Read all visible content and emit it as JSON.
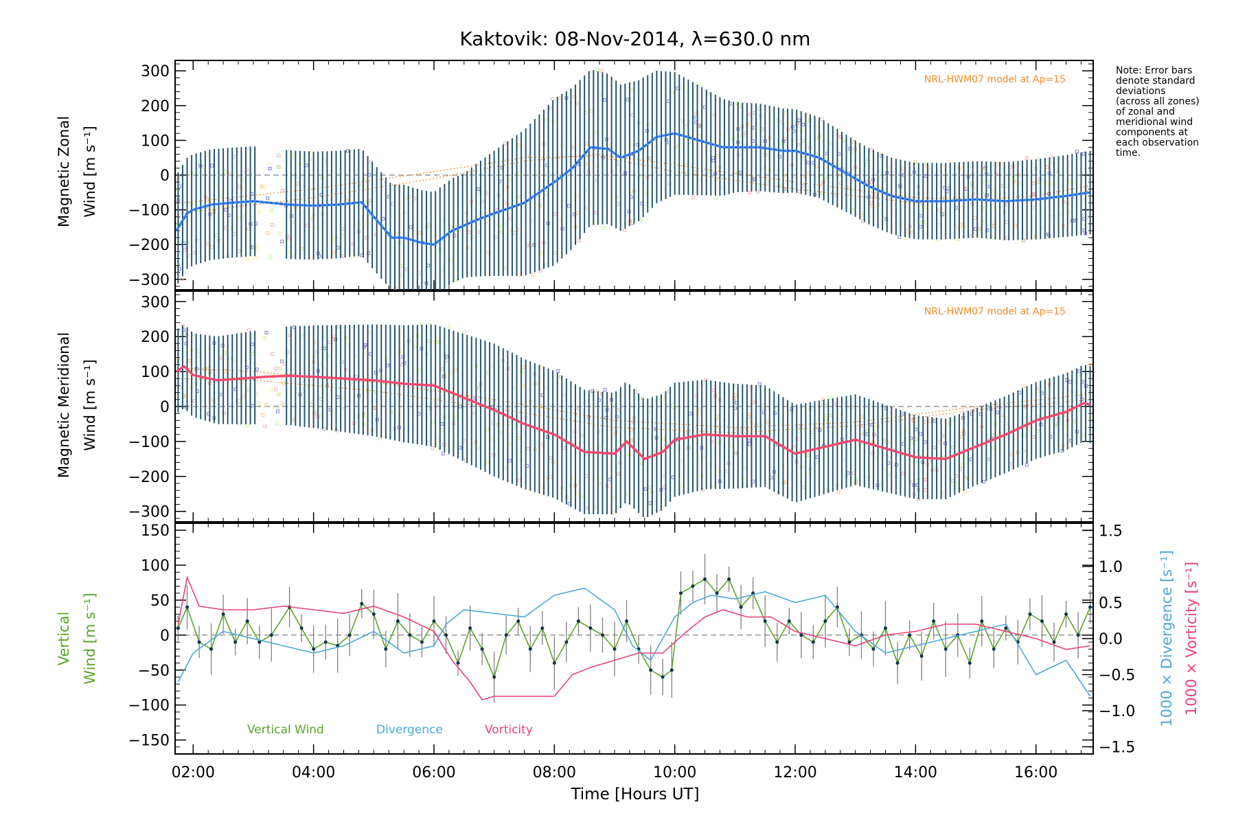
{
  "chart_data": {
    "title": "Kaktovik: 08-Nov-2014, λ=630.0 nm",
    "xlabel": "Time [Hours UT]",
    "x_ticks": [
      "02:00",
      "04:00",
      "06:00",
      "08:00",
      "10:00",
      "12:00",
      "14:00",
      "16:00"
    ],
    "x_tick_values": [
      2,
      4,
      6,
      8,
      10,
      12,
      14,
      16
    ],
    "xlim": [
      1.7,
      16.95
    ],
    "note_lines": [
      "Note: Error bars",
      "denote standard",
      "deviations",
      "(across all zones)",
      "of zonal and",
      "meridional wind",
      "components at",
      "each observation",
      "time."
    ],
    "colors": {
      "zonal": "#3f8fe0",
      "zonal_dark": "#1e3ef0",
      "meridional": "#f04a6e",
      "vertical": "#5aa52a",
      "divergence": "#4aa8d8",
      "vorticity": "#e8407a",
      "model": "#f08c28",
      "errorbar": "#23556e",
      "scatter_orange": "#f8c890",
      "scatter_green": "#c8f0a0",
      "scatter_yellow": "#f8e8a8",
      "scatter_blue": "#8080d0",
      "zero_line": "#808080"
    },
    "panels": [
      {
        "type": "line",
        "name": "zonal",
        "ylabel_line1": "Magnetic Zonal",
        "ylabel_line2": "Wind [m s⁻¹]",
        "ylim": [
          -330,
          330
        ],
        "yticks": [
          300,
          200,
          100,
          0,
          -100,
          -200,
          -300
        ],
        "model_label": "NRL-HWM07 model at Ap=15",
        "series": [
          {
            "x": [
              1.72,
              1.9,
              2.0,
              2.3,
              2.6,
              3.0,
              3.6,
              4.0,
              4.4,
              4.8,
              5.0,
              5.3,
              5.5,
              5.8,
              6.0,
              6.3,
              6.7,
              7.0,
              7.5,
              8.0,
              8.3,
              8.6,
              8.9,
              9.1,
              9.4,
              9.7,
              10.0,
              10.2,
              10.5,
              10.8,
              11.0,
              11.4,
              11.8,
              12.0,
              12.4,
              12.8,
              13.2,
              13.6,
              14.0,
              14.5,
              15.0,
              15.5,
              16.0,
              16.5,
              16.9
            ],
            "y": [
              -160,
              -110,
              -100,
              -85,
              -80,
              -75,
              -85,
              -88,
              -85,
              -78,
              -120,
              -180,
              -180,
              -195,
              -200,
              -160,
              -130,
              -110,
              -80,
              -20,
              20,
              80,
              75,
              50,
              70,
              110,
              120,
              110,
              95,
              80,
              80,
              80,
              70,
              70,
              50,
              10,
              -30,
              -60,
              -75,
              -75,
              -70,
              -75,
              -70,
              -60,
              -50
            ]
          }
        ],
        "model_curves": [
          {
            "x": [
              1.8,
              4.0,
              6.0,
              7.5,
              8.7,
              10.0,
              12.0,
              14.0,
              16.0,
              16.9
            ],
            "y": [
              -110,
              -65,
              -10,
              40,
              60,
              30,
              -20,
              -65,
              -75,
              -45
            ]
          },
          {
            "x": [
              1.8,
              4.0,
              6.0,
              7.5,
              8.7,
              10.0,
              12.0,
              14.0,
              16.0,
              16.9
            ],
            "y": [
              -80,
              -40,
              10,
              50,
              55,
              10,
              -40,
              -80,
              -60,
              -30
            ]
          }
        ],
        "error_sigma": [
          [
            2,
            160
          ],
          [
            6.5,
            150
          ],
          [
            8.0,
            240
          ],
          [
            9.5,
            200
          ],
          [
            11.0,
            130
          ],
          [
            13.0,
            110
          ],
          [
            15.0,
            110
          ],
          [
            16.9,
            120
          ]
        ]
      },
      {
        "type": "line",
        "name": "meridional",
        "ylabel_line1": "Magnetic Meridional",
        "ylabel_line2": "Wind [m s⁻¹]",
        "ylim": [
          -330,
          330
        ],
        "yticks": [
          300,
          200,
          100,
          0,
          -100,
          -200,
          -300
        ],
        "model_label": "NRL-HWM07 model at Ap=15",
        "series": [
          {
            "x": [
              1.72,
              1.85,
              2.0,
              2.4,
              2.8,
              3.2,
              3.6,
              4.0,
              4.5,
              5.0,
              5.5,
              6.0,
              6.5,
              7.0,
              7.5,
              8.0,
              8.5,
              9.0,
              9.2,
              9.5,
              9.8,
              10.0,
              10.5,
              11.0,
              11.5,
              12.0,
              12.5,
              13.0,
              13.5,
              14.0,
              14.5,
              15.0,
              15.5,
              16.0,
              16.5,
              16.8,
              16.9
            ],
            "y": [
              100,
              115,
              90,
              75,
              80,
              85,
              88,
              85,
              80,
              75,
              65,
              60,
              25,
              -10,
              -50,
              -80,
              -130,
              -135,
              -100,
              -150,
              -130,
              -95,
              -80,
              -85,
              -85,
              -135,
              -115,
              -95,
              -120,
              -145,
              -150,
              -115,
              -80,
              -40,
              -15,
              10,
              5
            ]
          }
        ],
        "model_curves": [
          {
            "x": [
              1.8,
              3.0,
              5.0,
              7.0,
              9.0,
              11.0,
              13.0,
              15.0,
              16.9
            ],
            "y": [
              110,
              100,
              70,
              20,
              -40,
              -60,
              -45,
              0,
              35
            ]
          },
          {
            "x": [
              1.8,
              3.0,
              5.0,
              7.0,
              9.0,
              11.0,
              13.0,
              15.0,
              16.9
            ],
            "y": [
              80,
              75,
              45,
              -5,
              -60,
              -75,
              -55,
              -10,
              20
            ]
          }
        ],
        "error_sigma": [
          [
            2,
            120
          ],
          [
            5.0,
            160
          ],
          [
            7.0,
            190
          ],
          [
            9.5,
            170
          ],
          [
            11.0,
            150
          ],
          [
            13.0,
            130
          ],
          [
            15.0,
            110
          ],
          [
            16.9,
            110
          ]
        ]
      },
      {
        "type": "line",
        "name": "vertical",
        "ylabel_line1": "Vertical",
        "ylabel_line2": "Wind [m s⁻¹]",
        "ylim": [
          -170,
          160
        ],
        "yticks": [
          150,
          100,
          50,
          0,
          -50,
          -100,
          -150
        ],
        "y2lim": [
          -1.6,
          1.6
        ],
        "y2ticks": [
          1.5,
          1.0,
          0.5,
          0.0,
          -0.5,
          -1.0,
          -1.5
        ],
        "y2label_div": "1000 × Divergence [s⁻¹]",
        "y2label_vor": "1000 × Vorticity [s⁻¹]",
        "legend": [
          "Vertical Wind",
          "Divergence",
          "Vorticity"
        ],
        "series": [
          {
            "name": "Vertical Wind",
            "x": [
              1.75,
              1.9,
              2.1,
              2.3,
              2.5,
              2.7,
              2.9,
              3.1,
              3.3,
              3.6,
              3.8,
              4.0,
              4.2,
              4.4,
              4.6,
              4.8,
              5.0,
              5.2,
              5.4,
              5.6,
              5.8,
              6.0,
              6.2,
              6.4,
              6.6,
              6.8,
              7.0,
              7.2,
              7.4,
              7.6,
              7.8,
              8.0,
              8.2,
              8.4,
              8.6,
              8.8,
              9.0,
              9.2,
              9.4,
              9.6,
              9.8,
              9.95,
              10.1,
              10.3,
              10.5,
              10.7,
              10.9,
              11.1,
              11.3,
              11.5,
              11.7,
              11.9,
              12.1,
              12.3,
              12.5,
              12.7,
              12.9,
              13.1,
              13.3,
              13.5,
              13.7,
              13.9,
              14.1,
              14.3,
              14.5,
              14.7,
              14.9,
              15.1,
              15.3,
              15.5,
              15.7,
              15.9,
              16.1,
              16.3,
              16.5,
              16.7,
              16.9
            ],
            "y": [
              10,
              40,
              -10,
              -20,
              30,
              -10,
              20,
              -10,
              0,
              40,
              10,
              -20,
              -10,
              -15,
              0,
              45,
              30,
              -20,
              20,
              0,
              -10,
              20,
              0,
              -40,
              10,
              -20,
              -60,
              0,
              20,
              -20,
              10,
              -40,
              -10,
              20,
              10,
              0,
              -20,
              20,
              -20,
              -50,
              -60,
              -50,
              60,
              70,
              80,
              60,
              80,
              40,
              60,
              20,
              -10,
              20,
              0,
              -10,
              20,
              40,
              -10,
              0,
              -20,
              10,
              -40,
              0,
              -30,
              20,
              -20,
              0,
              -40,
              20,
              -20,
              10,
              -10,
              30,
              20,
              -10,
              30,
              0,
              40
            ]
          },
          {
            "name": "Divergence",
            "x": [
              1.75,
              2.0,
              2.5,
              3.0,
              3.5,
              4.0,
              4.5,
              5.0,
              5.5,
              6.0,
              6.2,
              6.5,
              7.0,
              7.5,
              8.0,
              8.5,
              9.0,
              9.3,
              9.6,
              10.0,
              10.3,
              10.6,
              11.0,
              11.5,
              12.0,
              12.5,
              13.0,
              13.5,
              14.0,
              14.5,
              15.0,
              15.5,
              16.0,
              16.5,
              16.9
            ],
            "y": [
              -0.6,
              -0.2,
              0.1,
              0.0,
              -0.1,
              -0.2,
              -0.1,
              0.1,
              -0.2,
              -0.1,
              0.2,
              0.4,
              0.35,
              0.3,
              0.6,
              0.7,
              0.4,
              -0.1,
              -0.3,
              0.3,
              0.5,
              0.6,
              0.55,
              0.65,
              0.5,
              0.6,
              0.1,
              -0.2,
              -0.1,
              0.0,
              0.1,
              0.2,
              -0.5,
              -0.3,
              -0.8
            ]
          },
          {
            "name": "Vorticity",
            "x": [
              1.75,
              1.9,
              2.1,
              2.5,
              3.0,
              3.5,
              4.0,
              4.5,
              5.0,
              5.5,
              6.0,
              6.3,
              6.6,
              6.8,
              7.0,
              7.5,
              8.0,
              8.3,
              8.6,
              9.0,
              9.4,
              9.8,
              10.2,
              10.5,
              10.8,
              11.2,
              11.6,
              12.0,
              12.5,
              13.0,
              13.5,
              14.0,
              14.5,
              15.0,
              15.5,
              16.0,
              16.5,
              16.9
            ],
            "y": [
              0.2,
              0.85,
              0.45,
              0.4,
              0.4,
              0.45,
              0.4,
              0.35,
              0.45,
              0.3,
              0.1,
              -0.3,
              -0.6,
              -0.85,
              -0.8,
              -0.8,
              -0.8,
              -0.5,
              -0.4,
              -0.3,
              -0.2,
              -0.2,
              0.1,
              0.3,
              0.4,
              0.3,
              0.3,
              0.1,
              0.0,
              -0.1,
              0.05,
              0.1,
              0.2,
              0.2,
              0.1,
              0.0,
              -0.15,
              -0.1
            ]
          }
        ]
      }
    ]
  }
}
